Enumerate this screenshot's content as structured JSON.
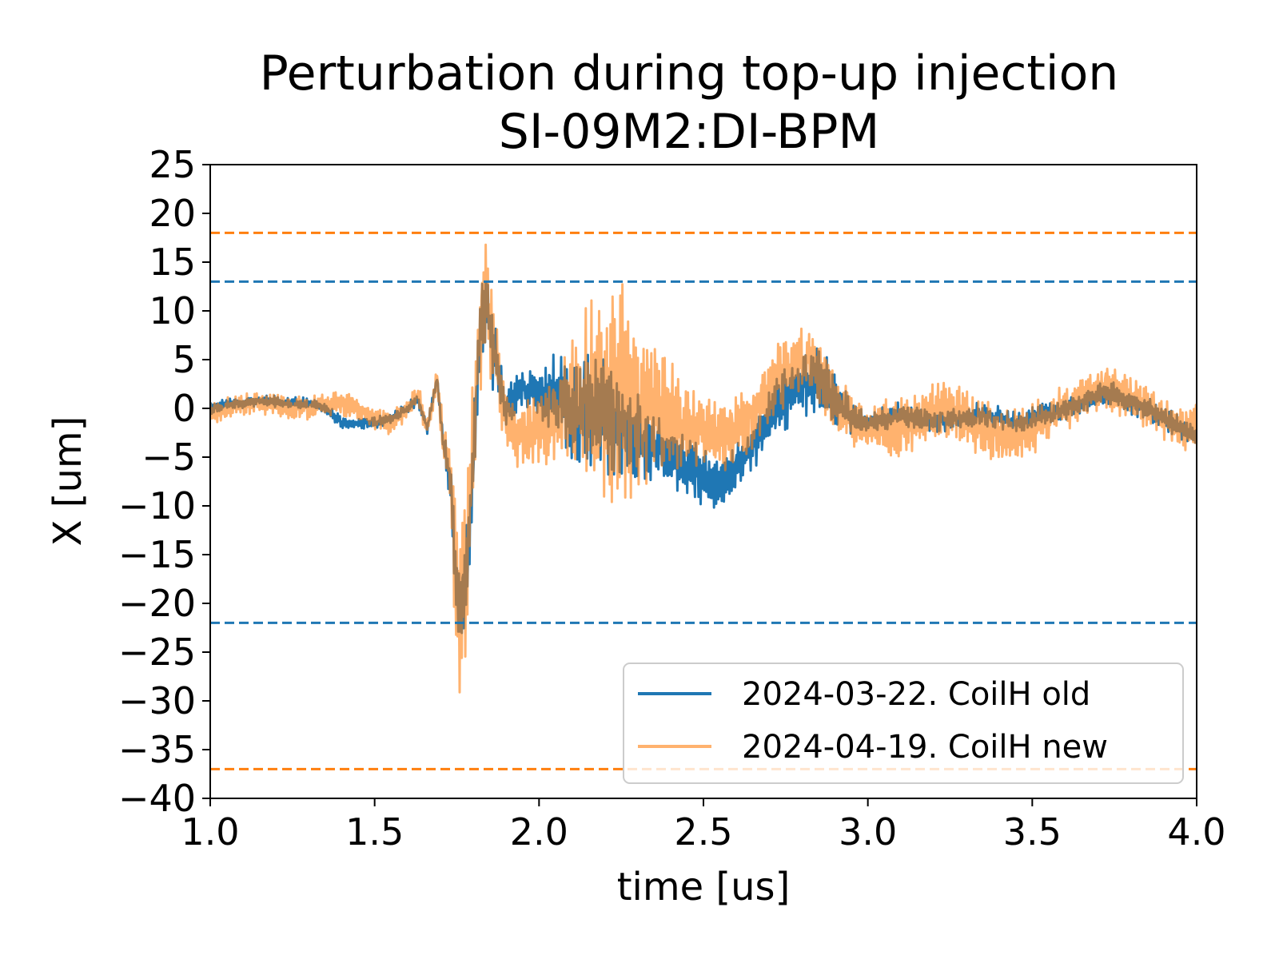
{
  "chart_data": {
    "type": "line",
    "title": "Perturbation during top-up injection",
    "subtitle": "SI-09M2:DI-BPM",
    "xlabel": "time [us]",
    "ylabel": "X [um]",
    "xlim": [
      1.0,
      4.0
    ],
    "ylim": [
      -40,
      25
    ],
    "x_ticks": [
      "1.0",
      "1.5",
      "2.0",
      "2.5",
      "3.0",
      "3.5",
      "4.0"
    ],
    "y_ticks": [
      "25",
      "20",
      "15",
      "10",
      "5",
      "0",
      "−5",
      "−10",
      "−15",
      "−20",
      "−25",
      "−30",
      "−35",
      "−40"
    ],
    "grid": false,
    "legend_position": "lower-right",
    "series": [
      {
        "name": "2024-03-22. CoilH old",
        "color": "#1f77b4",
        "opacity": 1.0,
        "x": [
          1.0,
          1.05,
          1.1,
          1.15,
          1.2,
          1.25,
          1.3,
          1.35,
          1.4,
          1.45,
          1.5,
          1.55,
          1.6,
          1.63,
          1.66,
          1.69,
          1.71,
          1.73,
          1.745,
          1.76,
          1.775,
          1.79,
          1.8,
          1.82,
          1.84,
          1.86,
          1.88,
          1.9,
          1.95,
          2.0,
          2.05,
          2.1,
          2.15,
          2.2,
          2.25,
          2.3,
          2.35,
          2.4,
          2.45,
          2.5,
          2.55,
          2.6,
          2.65,
          2.7,
          2.75,
          2.8,
          2.85,
          2.9,
          2.95,
          3.0,
          3.05,
          3.1,
          3.15,
          3.2,
          3.25,
          3.3,
          3.35,
          3.4,
          3.45,
          3.5,
          3.55,
          3.6,
          3.65,
          3.7,
          3.75,
          3.8,
          3.85,
          3.9,
          3.95,
          4.0
        ],
        "y": [
          0,
          0.5,
          0.5,
          0.8,
          0.7,
          0.6,
          0.5,
          0,
          -1.5,
          -1.5,
          -1.5,
          -1,
          0,
          1,
          -2,
          3,
          -4,
          -7,
          -15,
          -21,
          -18,
          -12,
          -5,
          8,
          11,
          6,
          3,
          0,
          2,
          1.5,
          1,
          0.5,
          0,
          -1,
          -2,
          -3,
          -4,
          -5,
          -6,
          -7,
          -8,
          -6,
          -4,
          -1,
          1,
          2,
          3,
          1,
          -1,
          -1.5,
          -1,
          -0.5,
          -1,
          -1.5,
          -1.2,
          -1,
          -0.5,
          -1,
          -1.5,
          -1,
          -0.5,
          0,
          0.5,
          1.5,
          1.5,
          0.5,
          0,
          -1,
          -2,
          -3
        ],
        "amp": [
          0.5,
          0.5,
          0.5,
          0.5,
          0.5,
          0.5,
          0.5,
          0.5,
          0.5,
          0.5,
          0.5,
          0.5,
          0.5,
          0.5,
          0.5,
          0.5,
          1,
          2,
          4,
          4,
          4,
          4,
          4,
          4,
          4,
          4,
          3,
          2,
          1.5,
          2,
          4,
          5,
          5,
          5,
          4,
          4,
          3,
          3,
          2.5,
          2.5,
          2,
          2,
          2,
          2.5,
          3,
          3,
          3,
          2.5,
          1.5,
          1,
          1,
          1,
          1,
          1,
          1,
          1,
          1,
          1,
          1,
          1,
          1,
          1,
          1,
          1,
          1,
          1,
          1,
          1,
          1,
          1
        ]
      },
      {
        "name": "2024-04-19. CoilH new",
        "color": "#ff7f0e",
        "opacity": 0.6,
        "x": [
          1.0,
          1.05,
          1.1,
          1.15,
          1.2,
          1.25,
          1.3,
          1.35,
          1.4,
          1.45,
          1.5,
          1.55,
          1.6,
          1.63,
          1.66,
          1.69,
          1.71,
          1.73,
          1.745,
          1.76,
          1.775,
          1.79,
          1.8,
          1.82,
          1.84,
          1.86,
          1.88,
          1.9,
          1.95,
          2.0,
          2.05,
          2.1,
          2.15,
          2.2,
          2.25,
          2.3,
          2.35,
          2.4,
          2.45,
          2.5,
          2.55,
          2.6,
          2.65,
          2.7,
          2.75,
          2.8,
          2.85,
          2.9,
          2.95,
          3.0,
          3.05,
          3.1,
          3.15,
          3.2,
          3.25,
          3.3,
          3.35,
          3.4,
          3.45,
          3.5,
          3.55,
          3.6,
          3.65,
          3.7,
          3.75,
          3.8,
          3.85,
          3.9,
          3.95,
          4.0
        ],
        "y": [
          -0.5,
          0,
          0.5,
          0.5,
          0.5,
          0,
          0,
          0.5,
          0.5,
          0,
          -1,
          -1.5,
          0,
          1.5,
          -2,
          3,
          -4,
          -6,
          -15,
          -23,
          -18,
          -10,
          -2,
          8,
          12,
          7,
          3,
          -1,
          -3,
          -2,
          -1,
          0,
          1,
          2,
          2,
          1,
          0,
          -1,
          -2,
          -2,
          -3,
          -2,
          -1,
          2,
          4,
          5,
          4,
          1,
          -1,
          -2,
          -2,
          -2,
          -1,
          0,
          0,
          -1,
          -2,
          -3,
          -3,
          -2,
          -1,
          0,
          1,
          2,
          2,
          1,
          0,
          -1,
          -2,
          -2
        ],
        "amp": [
          1,
          1,
          1,
          1,
          1,
          1,
          1,
          1,
          1,
          1,
          1,
          1,
          1,
          1,
          1,
          1,
          2,
          4,
          8,
          9,
          8,
          7,
          6,
          6,
          6,
          5,
          4,
          3,
          3,
          3,
          4,
          6,
          8,
          10,
          10,
          8,
          6,
          5,
          4,
          3,
          3,
          3,
          3,
          3,
          3,
          3,
          3,
          3,
          2.5,
          2.5,
          2.5,
          2.5,
          2.5,
          2.5,
          2.5,
          2.5,
          2.5,
          2.5,
          2.5,
          2.5,
          2,
          2,
          2,
          2,
          2,
          2,
          2,
          2,
          2,
          2
        ]
      }
    ],
    "threshold_lines": [
      {
        "y": 18,
        "color": "#ff7f0e",
        "style": "dashed"
      },
      {
        "y": 13,
        "color": "#1f77b4",
        "style": "dashed"
      },
      {
        "y": -22,
        "color": "#1f77b4",
        "style": "dashed"
      },
      {
        "y": -37,
        "color": "#ff7f0e",
        "style": "dashed"
      }
    ]
  }
}
